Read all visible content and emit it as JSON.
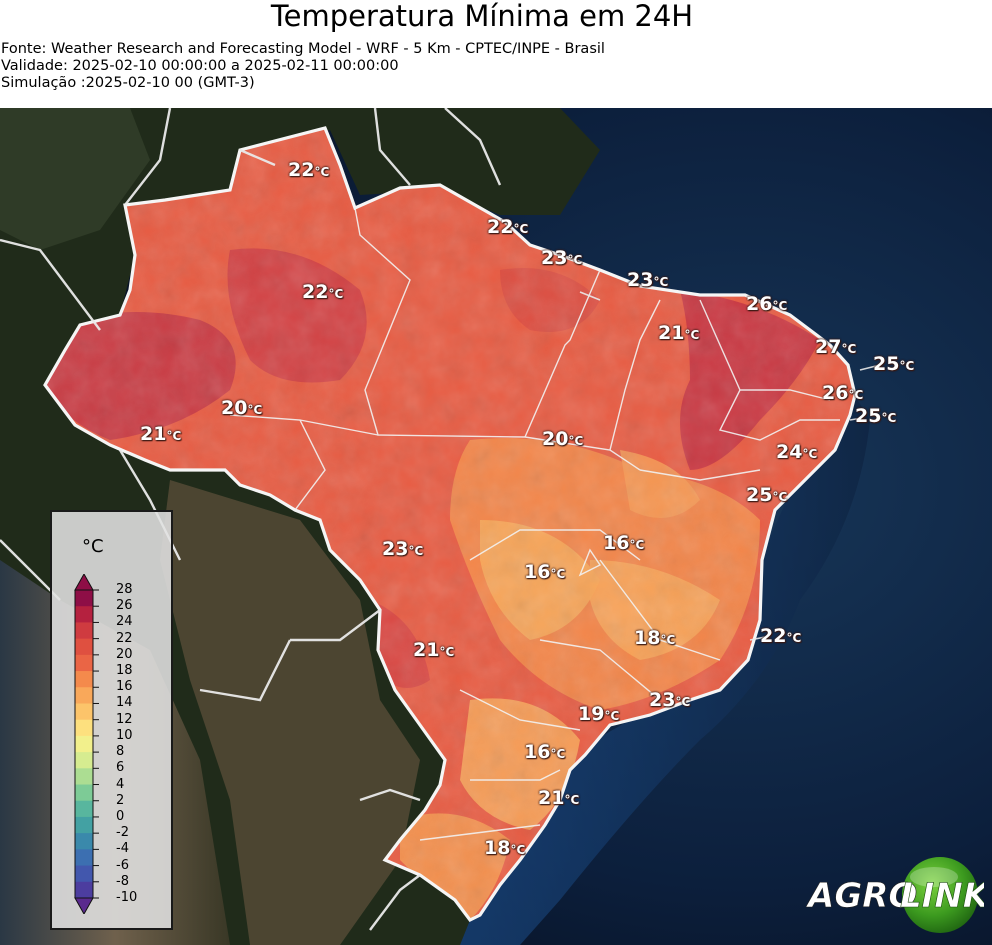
{
  "header": {
    "title": "Temperatura Mínima em 24H",
    "source": "Fonte: Weather Research and Forecasting Model - WRF - 5 Km - CPTEC/INPE - Brasil",
    "validity": "Validade: 2025-02-10 00:00:00 a 2025-02-11 00:00:00",
    "simulation": "Simulação :2025-02-10 00 (GMT-3)"
  },
  "legend": {
    "unit": "°C",
    "ticks": [
      "28",
      "26",
      "24",
      "22",
      "20",
      "18",
      "16",
      "14",
      "12",
      "10",
      "8",
      "6",
      "4",
      "2",
      "0",
      "-2",
      "-4",
      "-6",
      "-8",
      "-10"
    ],
    "colors": [
      "#8e0e46",
      "#b5213f",
      "#cf3b40",
      "#df5040",
      "#ea6545",
      "#f48a4c",
      "#f9a85a",
      "#fcc46a",
      "#fde07e",
      "#f2f08c",
      "#d6ec90",
      "#acdd92",
      "#7dcb96",
      "#58b69e",
      "#43a1a3",
      "#3a89ab",
      "#3c6fb1",
      "#4257ad",
      "#4c3d9f",
      "#5a2a8e"
    ]
  },
  "cities": [
    {
      "temp": "22",
      "unit": "°C"
    },
    {
      "temp": "22",
      "unit": "°C"
    },
    {
      "temp": "23",
      "unit": "°C"
    },
    {
      "temp": "23",
      "unit": "°C"
    },
    {
      "temp": "22",
      "unit": "°C"
    },
    {
      "temp": "26",
      "unit": "°C"
    },
    {
      "temp": "21",
      "unit": "°C"
    },
    {
      "temp": "27",
      "unit": "°C"
    },
    {
      "temp": "25",
      "unit": "°C"
    },
    {
      "temp": "26",
      "unit": "°C"
    },
    {
      "temp": "25",
      "unit": "°C"
    },
    {
      "temp": "20",
      "unit": "°C"
    },
    {
      "temp": "21",
      "unit": "°C"
    },
    {
      "temp": "20",
      "unit": "°C"
    },
    {
      "temp": "24",
      "unit": "°C"
    },
    {
      "temp": "25",
      "unit": "°C"
    },
    {
      "temp": "16",
      "unit": "°C"
    },
    {
      "temp": "23",
      "unit": "°C"
    },
    {
      "temp": "16",
      "unit": "°C"
    },
    {
      "temp": "18",
      "unit": "°C"
    },
    {
      "temp": "22",
      "unit": "°C"
    },
    {
      "temp": "21",
      "unit": "°C"
    },
    {
      "temp": "23",
      "unit": "°C"
    },
    {
      "temp": "19",
      "unit": "°C"
    },
    {
      "temp": "16",
      "unit": "°C"
    },
    {
      "temp": "21",
      "unit": "°C"
    },
    {
      "temp": "18",
      "unit": "°C"
    }
  ],
  "logo": {
    "part1": "AGRO",
    "part2": "LINK"
  },
  "colors": {
    "ocean": "#0d1a2e",
    "land_dark": "#1e2a18",
    "brazil_base": "#e85c43",
    "warm_zone": "#c73945",
    "mild_zone": "#f48d4c",
    "cool_zone": "#f7a65a",
    "border": "#f2f2f2"
  }
}
